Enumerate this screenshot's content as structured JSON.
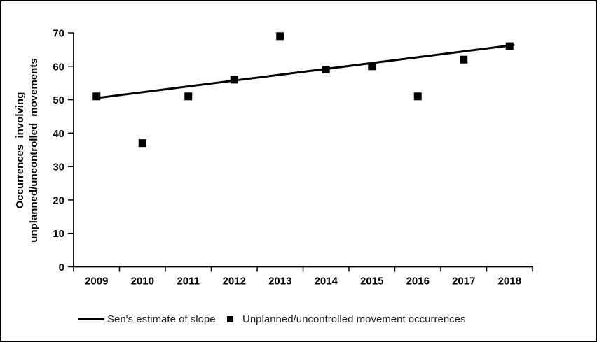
{
  "figure": {
    "background": "#ffffff",
    "border_color": "#000000",
    "marker_color": "#000000",
    "line_color": "#000000"
  },
  "chart_data": {
    "type": "scatter",
    "title": "",
    "xlabel": "",
    "ylabel": "Occurrences involving unplanned/uncontrolled movements",
    "ylabel_lines": [
      "Occurrences involving",
      "unplanned/uncontrolled movements"
    ],
    "categories": [
      "2009",
      "2010",
      "2011",
      "2012",
      "2013",
      "2014",
      "2015",
      "2016",
      "2017",
      "2018"
    ],
    "series": [
      {
        "name": "Unplanned/uncontrolled movement occurrences",
        "type": "scatter",
        "marker": "filled-square",
        "values": [
          51,
          37,
          51,
          56,
          69,
          59,
          60,
          51,
          62,
          66
        ]
      },
      {
        "name": "Sen's estimate of slope",
        "type": "line",
        "trend": {
          "start_category": "2009",
          "start_value": 50.5,
          "end_category": "2018",
          "end_value": 66.2
        }
      }
    ],
    "y_ticks": [
      0,
      10,
      20,
      30,
      40,
      50,
      60,
      70
    ],
    "ylim": [
      0,
      70
    ],
    "grid": false,
    "legend_position": "bottom"
  },
  "legend": {
    "items": [
      {
        "label": "Sen's estimate of slope",
        "symbol": "line"
      },
      {
        "label": "Unplanned/uncontrolled movement occurrences",
        "symbol": "square"
      }
    ]
  }
}
